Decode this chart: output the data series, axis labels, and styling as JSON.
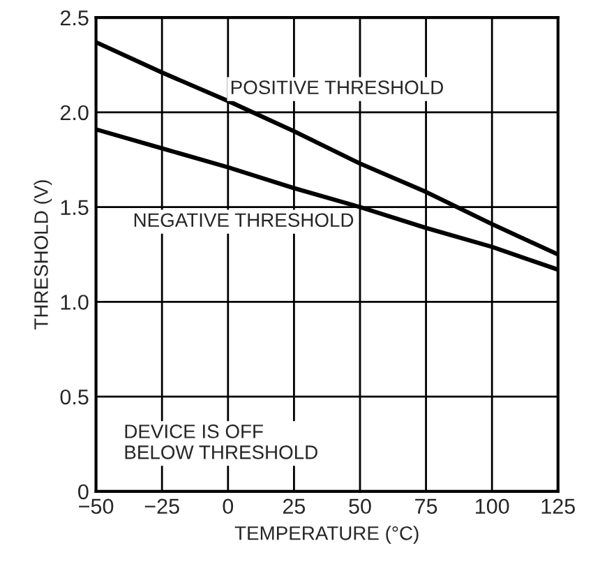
{
  "chart_data": {
    "type": "line",
    "xlabel": "TEMPERATURE (°C)",
    "ylabel": "THRESHOLD (V)",
    "x": [
      -50,
      -25,
      0,
      25,
      50,
      75,
      100,
      125
    ],
    "series": [
      {
        "color": "#000000",
        "values": [
          2.37,
          2.21,
          2.06,
          1.9,
          1.73,
          1.58,
          1.41,
          1.25
        ]
      },
      {
        "color": "#000000",
        "values": [
          1.91,
          1.81,
          1.71,
          1.6,
          1.5,
          1.39,
          1.29,
          1.17
        ]
      }
    ],
    "xlim": [
      -50,
      125
    ],
    "ylim": [
      0,
      2.5
    ],
    "xticks": [
      {
        "value": -50,
        "label": "−50"
      },
      {
        "value": -25,
        "label": "−25"
      },
      0,
      25,
      50,
      75,
      100,
      125
    ],
    "yticks": [
      0,
      0.5,
      {
        "value": 1,
        "label": "1.0"
      },
      1.5,
      {
        "value": 2,
        "label": "2.0"
      },
      2.5
    ],
    "grid": true,
    "line_style": "solid",
    "marker": "none",
    "annotations": [
      "POSITIVE THRESHOLD",
      "NEGATIVE THRESHOLD",
      "DEVICE IS OFF\nBELOW THRESHOLD"
    ]
  }
}
